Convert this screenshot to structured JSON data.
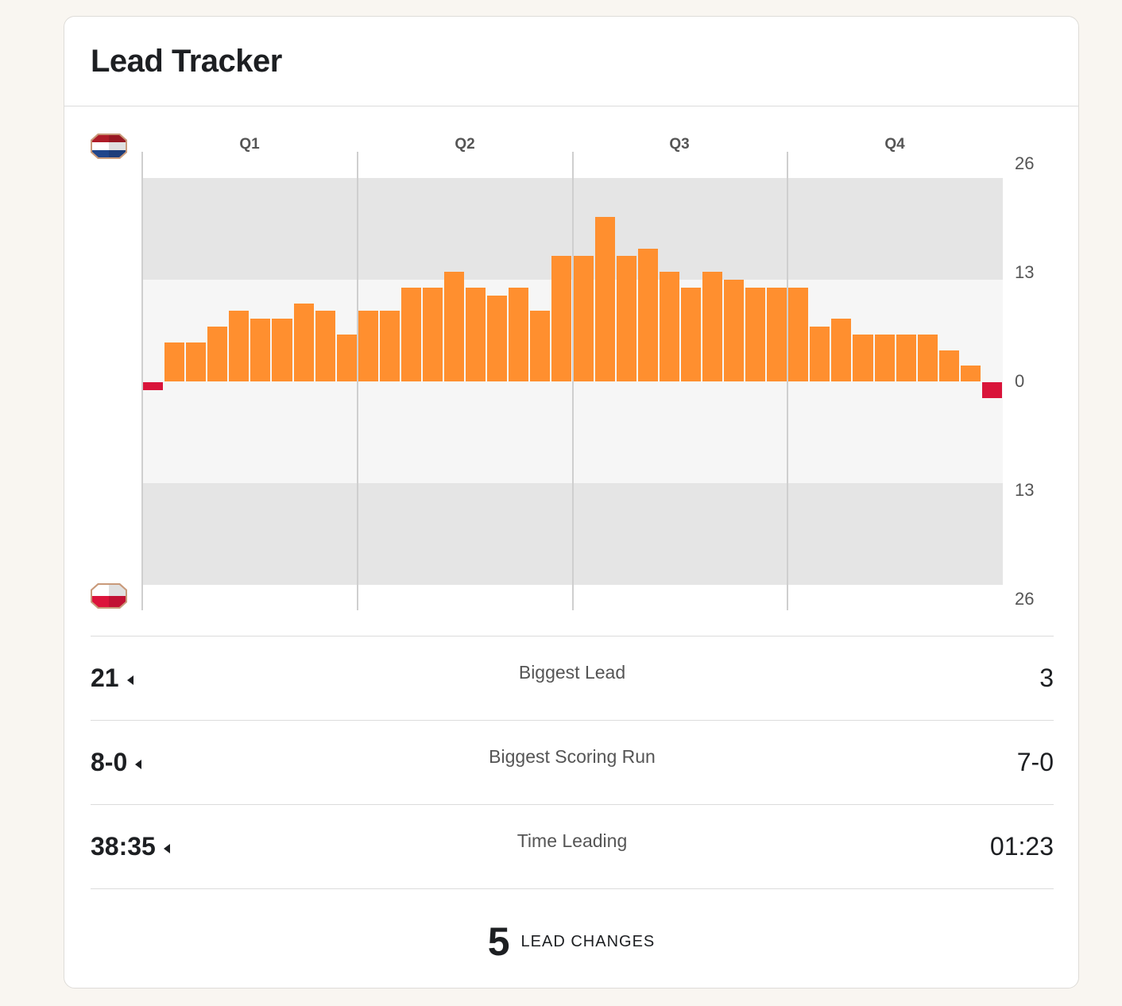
{
  "title": "Lead Tracker",
  "colors": {
    "home": "#ff8f2f",
    "away": "#d9143a",
    "band_dark": "#e5e5e5",
    "band_light": "#f6f6f6"
  },
  "teams": {
    "top_flag": "netherlands-flag-icon",
    "bottom_flag": "poland-flag-icon"
  },
  "chart_data": {
    "type": "bar",
    "title": "Lead Tracker",
    "quarters": [
      "Q1",
      "Q2",
      "Q3",
      "Q4"
    ],
    "y_tick_labels": [
      "26",
      "13",
      "0",
      "13",
      "26"
    ],
    "ylim": [
      -26,
      26
    ],
    "values": [
      -1,
      5,
      5,
      7,
      9,
      8,
      8,
      10,
      9,
      6,
      9,
      9,
      12,
      12,
      14,
      12,
      11,
      12,
      9,
      16,
      16,
      21,
      16,
      17,
      14,
      12,
      14,
      13,
      12,
      12,
      12,
      7,
      8,
      6,
      6,
      6,
      6,
      4,
      2,
      -2
    ]
  },
  "stats": [
    {
      "left": "21",
      "label": "Biggest Lead",
      "right": "3"
    },
    {
      "left": "8-0",
      "label": "Biggest Scoring Run",
      "right": "7-0"
    },
    {
      "left": "38:35",
      "label": "Time Leading",
      "right": "01:23"
    }
  ],
  "lead_changes": {
    "count": "5",
    "label": "LEAD CHANGES"
  }
}
